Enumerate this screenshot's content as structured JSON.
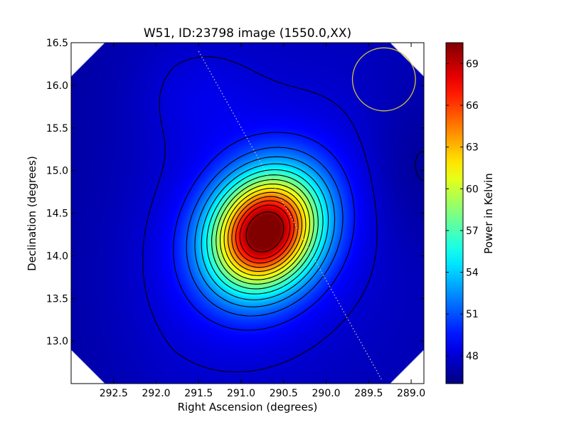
{
  "chart_data": {
    "type": "heatmap",
    "title": "W51, ID:23798 image (1550.0,XX)",
    "xlabel": "Right Ascension (degrees)",
    "ylabel": "Declination (degrees)",
    "xlim": [
      293.0,
      288.85
    ],
    "ylim": [
      12.5,
      16.5
    ],
    "x_ticks": [
      292.5,
      292.0,
      291.5,
      291.0,
      290.5,
      290.0,
      289.5,
      289.0
    ],
    "x_tick_labels": [
      "292.5",
      "292.0",
      "291.5",
      "291.0",
      "290.5",
      "290.0",
      "289.5",
      "289.0"
    ],
    "y_ticks": [
      13.0,
      13.5,
      14.0,
      14.5,
      15.0,
      15.5,
      16.0,
      16.5
    ],
    "y_tick_labels": [
      "13.0",
      "13.5",
      "14.0",
      "14.5",
      "15.0",
      "15.5",
      "16.0",
      "16.5"
    ],
    "colorbar": {
      "label": "Power in Kelvin",
      "range": [
        46.0,
        70.5
      ],
      "ticks": [
        48,
        51,
        54,
        57,
        60,
        63,
        66,
        69
      ],
      "tick_labels": [
        "48",
        "51",
        "54",
        "57",
        "60",
        "63",
        "66",
        "69"
      ],
      "colormap": "jet"
    },
    "peak": {
      "ra": 290.72,
      "dec": 14.28,
      "value": 70.0
    },
    "contour_levels": [
      46.8,
      48.0,
      49.5,
      51.0,
      52.5,
      54.0,
      55.5,
      57.0,
      58.5,
      60.0,
      61.5,
      63.0,
      64.5,
      66.0,
      67.5,
      69.5
    ],
    "beam_circle": {
      "ra": 289.32,
      "dec": 16.07,
      "radius_deg": 0.37,
      "color": "#d4c43a"
    },
    "dotted_line": {
      "start": {
        "ra": 291.5,
        "dec": 16.4
      },
      "end": {
        "ra": 289.35,
        "dec": 12.55
      },
      "color": "#c8c8c8"
    },
    "colors": {
      "contour": "#000000",
      "background": "#ffffff"
    }
  }
}
